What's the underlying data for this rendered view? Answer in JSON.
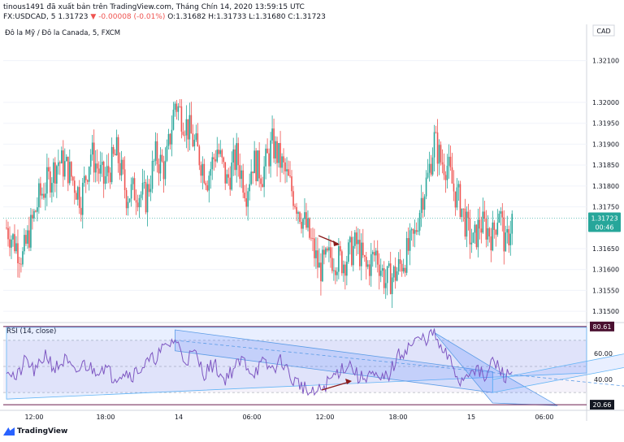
{
  "header": {
    "publish_line": "tinous1491 đã xuất bản trên TradingView.com, Tháng Chín 14, 2020 13:59:15 UTC",
    "symbol": "FX:USDCAD, 5",
    "last": "1.31723",
    "change": "▼ -0.00008 (-0.01%)",
    "ohlc": "O:1.31682 H:1.31733 L:1.31680 C:1.31723"
  },
  "legend": "Đô la Mỹ / Đô la Canada, 5, FXCM",
  "rsi_legend": "RSI (14, close)",
  "brand": "TradingView",
  "price_axis": {
    "currency": "CAD",
    "current_price": "1.31723",
    "countdown": "00:46"
  },
  "rsi_axis": {
    "upper_marker": "80.61",
    "lower_marker": "20.66"
  },
  "chart_data": [
    {
      "type": "candlestick",
      "title": "Đô la Mỹ / Đô la Canada, 5, FXCM",
      "y_ticks": [
        1.321,
        1.32,
        1.3195,
        1.319,
        1.3185,
        1.318,
        1.3175,
        1.3165,
        1.316,
        1.3155,
        1.315
      ],
      "ylim": [
        1.31475,
        1.32175
      ],
      "x_ticks": [
        "12:00",
        "18:00",
        "14",
        "06:00",
        "12:00",
        "18:00",
        "15",
        "06:00"
      ],
      "current_price": 1.31723,
      "close_path": [
        [
          0,
          1.317
        ],
        [
          10,
          1.3163
        ],
        [
          20,
          1.3177
        ],
        [
          32,
          1.3186
        ],
        [
          38,
          1.3184
        ],
        [
          46,
          1.3177
        ],
        [
          52,
          1.3188
        ],
        [
          60,
          1.3181
        ],
        [
          68,
          1.3188
        ],
        [
          74,
          1.3178
        ],
        [
          80,
          1.3179
        ],
        [
          86,
          1.3177
        ],
        [
          92,
          1.3187
        ],
        [
          98,
          1.3184
        ],
        [
          104,
          1.32
        ],
        [
          108,
          1.3197
        ],
        [
          113,
          1.3193
        ],
        [
          118,
          1.3188
        ],
        [
          124,
          1.3182
        ],
        [
          130,
          1.3189
        ],
        [
          136,
          1.3181
        ],
        [
          142,
          1.3187
        ],
        [
          148,
          1.3179
        ],
        [
          152,
          1.3186
        ],
        [
          158,
          1.3183
        ],
        [
          164,
          1.319
        ],
        [
          170,
          1.3185
        ],
        [
          178,
          1.3177
        ],
        [
          186,
          1.3169
        ],
        [
          193,
          1.316
        ],
        [
          200,
          1.3163
        ],
        [
          208,
          1.3162
        ],
        [
          216,
          1.3166
        ],
        [
          222,
          1.316
        ],
        [
          228,
          1.3164
        ],
        [
          234,
          1.3157
        ],
        [
          240,
          1.3159
        ],
        [
          246,
          1.3163
        ],
        [
          252,
          1.3168
        ],
        [
          256,
          1.3177
        ],
        [
          260,
          1.3182
        ],
        [
          264,
          1.3191
        ],
        [
          268,
          1.3186
        ],
        [
          272,
          1.3185
        ],
        [
          276,
          1.3179
        ],
        [
          280,
          1.3176
        ],
        [
          284,
          1.317
        ],
        [
          288,
          1.3166
        ],
        [
          292,
          1.3171
        ],
        [
          296,
          1.317
        ],
        [
          300,
          1.3168
        ],
        [
          304,
          1.3175
        ],
        [
          308,
          1.3165
        ],
        [
          312,
          1.31723
        ]
      ]
    },
    {
      "type": "line",
      "title": "RSI (14, close)",
      "y_ticks": [
        60.0,
        40.0
      ],
      "ylim": [
        17,
        83
      ],
      "upper_band": 80.61,
      "lower_band": 20.66,
      "rsi_path": [
        [
          0,
          50
        ],
        [
          6,
          40
        ],
        [
          12,
          55
        ],
        [
          18,
          45
        ],
        [
          24,
          60
        ],
        [
          30,
          48
        ],
        [
          36,
          55
        ],
        [
          42,
          44
        ],
        [
          48,
          52
        ],
        [
          54,
          47
        ],
        [
          60,
          50
        ],
        [
          66,
          42
        ],
        [
          72,
          46
        ],
        [
          78,
          44
        ],
        [
          84,
          50
        ],
        [
          90,
          55
        ],
        [
          96,
          62
        ],
        [
          104,
          71
        ],
        [
          110,
          55
        ],
        [
          116,
          60
        ],
        [
          122,
          45
        ],
        [
          128,
          52
        ],
        [
          134,
          40
        ],
        [
          140,
          48
        ],
        [
          146,
          55
        ],
        [
          152,
          45
        ],
        [
          158,
          52
        ],
        [
          164,
          48
        ],
        [
          170,
          55
        ],
        [
          176,
          40
        ],
        [
          182,
          36
        ],
        [
          188,
          28
        ],
        [
          194,
          32
        ],
        [
          200,
          40
        ],
        [
          206,
          48
        ],
        [
          212,
          52
        ],
        [
          218,
          40
        ],
        [
          224,
          45
        ],
        [
          230,
          38
        ],
        [
          236,
          44
        ],
        [
          242,
          58
        ],
        [
          248,
          65
        ],
        [
          254,
          70
        ],
        [
          260,
          72
        ],
        [
          264,
          76
        ],
        [
          268,
          62
        ],
        [
          272,
          58
        ],
        [
          276,
          48
        ],
        [
          280,
          38
        ],
        [
          284,
          44
        ],
        [
          288,
          50
        ],
        [
          292,
          45
        ],
        [
          296,
          40
        ],
        [
          300,
          55
        ],
        [
          304,
          48
        ],
        [
          308,
          42
        ],
        [
          312,
          46
        ]
      ]
    }
  ]
}
